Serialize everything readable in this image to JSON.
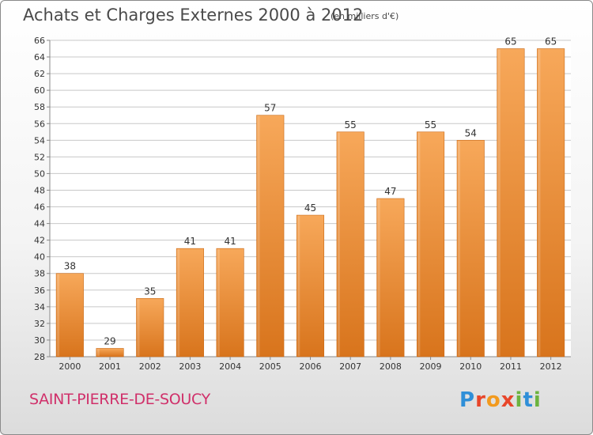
{
  "header": {
    "title": "Achats et Charges Externes 2000 à 2012",
    "subtitle": "(en milliers d'€)"
  },
  "footer": {
    "commune": "SAINT-PIERRE-DE-SOUCY",
    "logo_letters": [
      "P",
      "r",
      "o",
      "x",
      "i",
      "t",
      "i"
    ],
    "logo_colors": [
      "#2f8fd8",
      "#e8462a",
      "#f29a1e",
      "#e8462a",
      "#6cb33f",
      "#2f8fd8",
      "#6cb33f"
    ]
  },
  "colors": {
    "bar_light": "#f7a85a",
    "bar_dark": "#d8741c",
    "grid": "#c8c8c8",
    "axis_text": "#333333",
    "commune": "#d0306a"
  },
  "chart_data": {
    "type": "bar",
    "title": "Achats et Charges Externes 2000 à 2012",
    "subtitle": "(en milliers d'€)",
    "categories": [
      "2000",
      "2001",
      "2002",
      "2003",
      "2004",
      "2005",
      "2006",
      "2007",
      "2008",
      "2009",
      "2010",
      "2011",
      "2012"
    ],
    "values": [
      38,
      29,
      35,
      41,
      41,
      57,
      45,
      55,
      47,
      55,
      54,
      65,
      65
    ],
    "ylim": [
      28,
      66
    ],
    "ytick_step": 2,
    "grid": true,
    "data_labels": true
  }
}
